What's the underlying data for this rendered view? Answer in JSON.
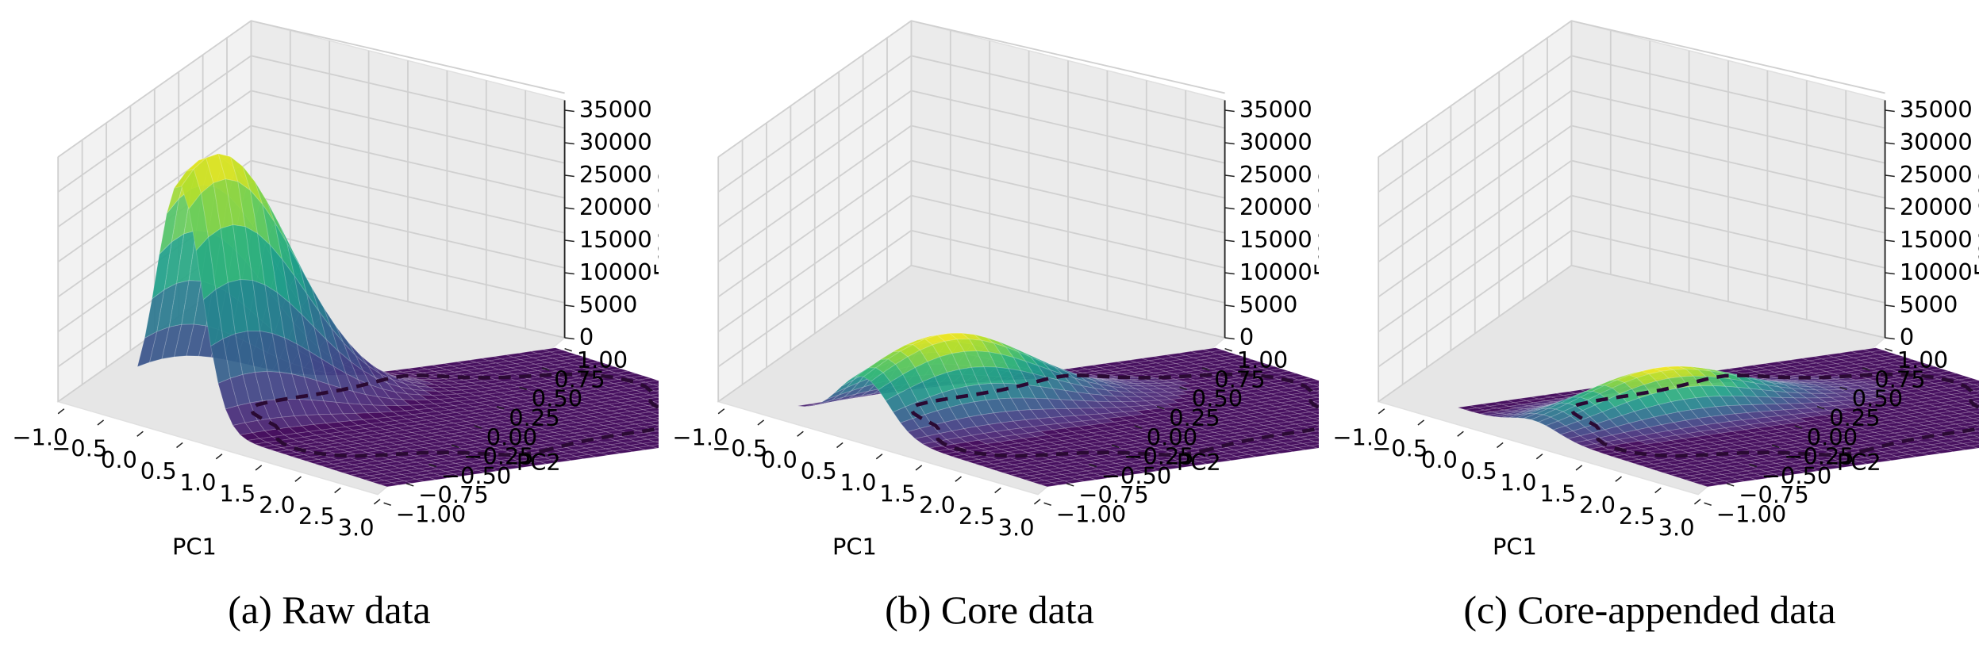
{
  "chart_data": [
    {
      "type": "surface3d",
      "caption": "(a) Raw data",
      "xlabel": "PC1",
      "ylabel": "PC2",
      "zlabel": "Frequency",
      "xticks": [
        "−1.0",
        "−0.5",
        "0.0",
        "0.5",
        "1.0",
        "1.5",
        "2.0",
        "2.5",
        "3.0"
      ],
      "yticks": [
        "−1.00",
        "−0.75",
        "−0.50",
        "−0.25",
        "0.00",
        "0.25",
        "0.50",
        "0.75",
        "1.00"
      ],
      "zticks": [
        "0",
        "5000",
        "10000",
        "15000",
        "20000",
        "25000",
        "30000",
        "35000"
      ],
      "xlim": [
        -1.0,
        3.0
      ],
      "ylim": [
        -1.0,
        1.0
      ],
      "zlim": [
        0,
        38000
      ],
      "peak": {
        "pc1": -0.2,
        "pc2": 0.75,
        "frequency": 35000,
        "width": 0.32
      },
      "colormap": "viridis"
    },
    {
      "type": "surface3d",
      "caption": "(b) Core data",
      "xlabel": "PC1",
      "ylabel": "PC2",
      "zlabel": "Frequency",
      "xticks": [
        "−1.0",
        "−0.5",
        "0.0",
        "0.5",
        "1.0",
        "1.5",
        "2.0",
        "2.5",
        "3.0"
      ],
      "yticks": [
        "−1.00",
        "−0.75",
        "−0.50",
        "−0.25",
        "0.00",
        "0.25",
        "0.50",
        "0.75",
        "1.00"
      ],
      "zticks": [
        "0",
        "5000",
        "10000",
        "15000",
        "20000",
        "25000",
        "30000",
        "35000"
      ],
      "xlim": [
        -1.0,
        3.0
      ],
      "ylim": [
        -1.0,
        1.0
      ],
      "zlim": [
        0,
        38000
      ],
      "peak": {
        "pc1": 0.15,
        "pc2": 0.55,
        "frequency": 11000,
        "width": 0.36
      },
      "colormap": "viridis"
    },
    {
      "type": "surface3d",
      "caption": "(c) Core-appended data",
      "xlabel": "PC1",
      "ylabel": "PC2",
      "zlabel": "Frequency",
      "xticks": [
        "−1.0",
        "−0.5",
        "0.0",
        "0.5",
        "1.0",
        "1.5",
        "2.0",
        "2.5",
        "3.0"
      ],
      "yticks": [
        "−1.00",
        "−0.75",
        "−0.50",
        "−0.25",
        "0.00",
        "0.25",
        "0.50",
        "0.75",
        "1.00"
      ],
      "zticks": [
        "0",
        "5000",
        "10000",
        "15000",
        "20000",
        "25000",
        "30000",
        "35000"
      ],
      "xlim": [
        -1.0,
        3.0
      ],
      "ylim": [
        -1.0,
        1.0
      ],
      "zlim": [
        0,
        38000
      ],
      "peak": {
        "pc1": 0.3,
        "pc2": 0.35,
        "frequency": 6000,
        "width": 0.33
      },
      "colormap": "viridis"
    }
  ],
  "colors": {
    "viridis": [
      "#440154",
      "#482878",
      "#3e4a89",
      "#31688e",
      "#26828e",
      "#1f9e89",
      "#35b779",
      "#6ece58",
      "#b5de2b",
      "#fde725"
    ],
    "floor": "#47105f",
    "pane": "#f2f2f2",
    "grid": "#d0d0d0"
  }
}
